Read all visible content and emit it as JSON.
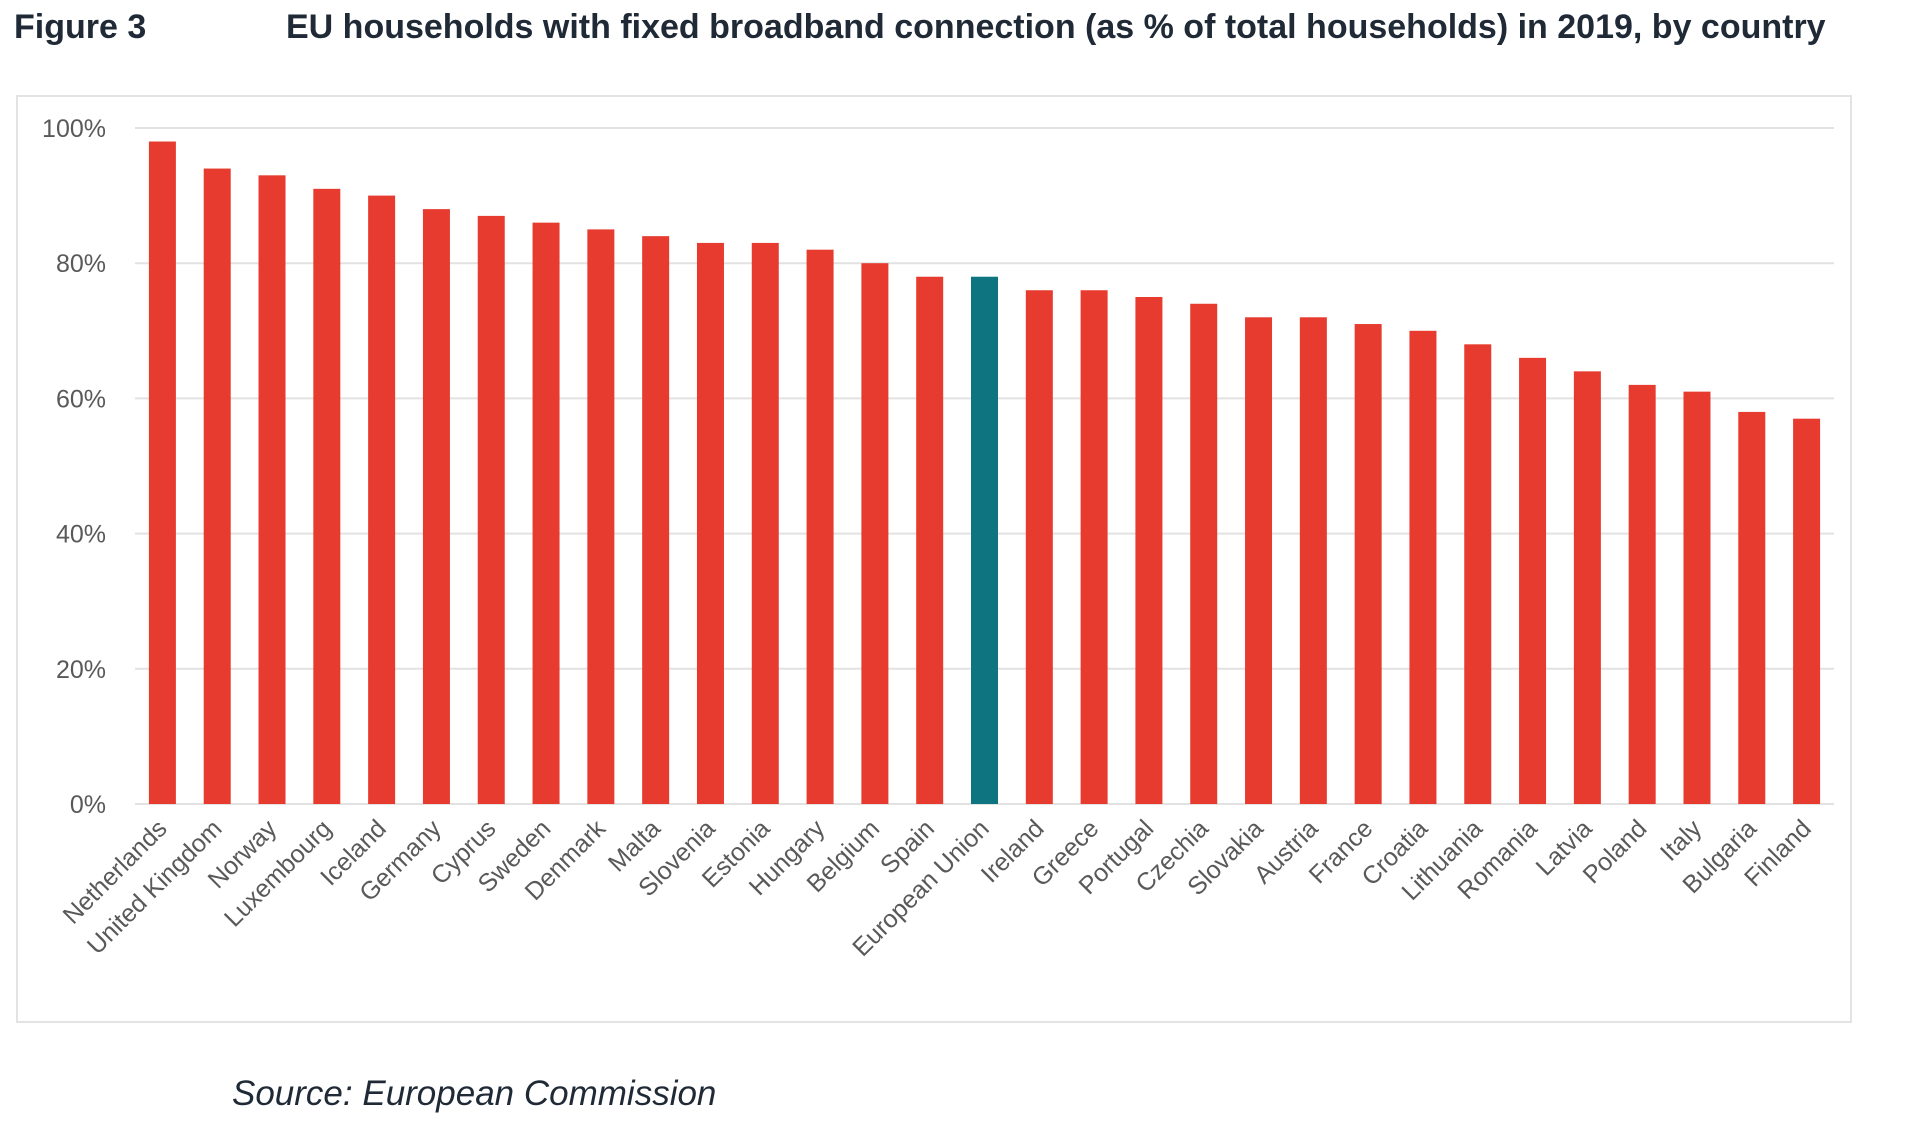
{
  "figure_label": "Figure 3",
  "source": "Source: European Commission",
  "colors": {
    "country_bar": "#e63b2e",
    "eu_bar": "#0e7580",
    "grid": "#e2e2e2",
    "tick_text": "#595959"
  },
  "chart_data": {
    "type": "bar",
    "title": "EU households with fixed broadband connection (as % of total households) in 2019, by country",
    "xlabel": "",
    "ylabel": "",
    "ylim": [
      0,
      100
    ],
    "y_ticks": [
      0,
      20,
      40,
      60,
      80,
      100
    ],
    "y_tick_labels": [
      "0%",
      "20%",
      "40%",
      "60%",
      "80%",
      "100%"
    ],
    "grid": true,
    "highlight_category": "European Union",
    "categories": [
      "Netherlands",
      "United Kingdom",
      "Norway",
      "Luxembourg",
      "Iceland",
      "Germany",
      "Cyprus",
      "Sweden",
      "Denmark",
      "Malta",
      "Slovenia",
      "Estonia",
      "Hungary",
      "Belgium",
      "Spain",
      "European Union",
      "Ireland",
      "Greece",
      "Portugal",
      "Czechia",
      "Slovakia",
      "Austria",
      "France",
      "Croatia",
      "Lithuania",
      "Romania",
      "Latvia",
      "Poland",
      "Italy",
      "Bulgaria",
      "Finland"
    ],
    "values": [
      98,
      94,
      93,
      91,
      90,
      88,
      87,
      86,
      85,
      84,
      83,
      83,
      82,
      80,
      78,
      78,
      76,
      76,
      75,
      74,
      72,
      72,
      71,
      70,
      68,
      66,
      64,
      62,
      61,
      58,
      57
    ]
  }
}
